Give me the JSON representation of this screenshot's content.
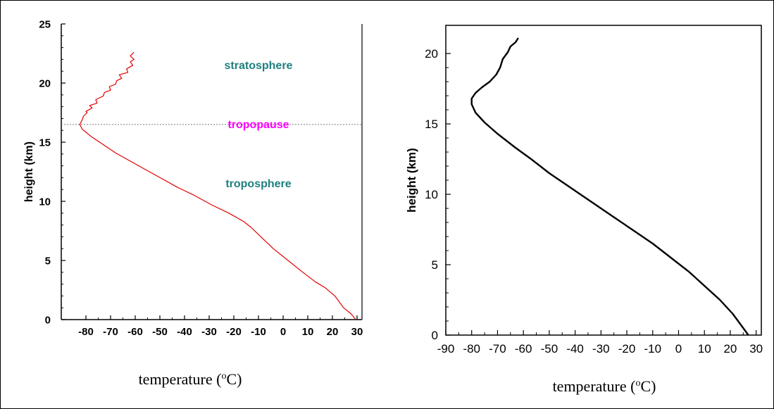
{
  "chart_data": [
    {
      "type": "line",
      "xlabel_prefix": "temperature (",
      "xlabel_sup": "o",
      "xlabel_suffix": "C)",
      "ylabel": "height (km)",
      "xlim": [
        -90,
        32
      ],
      "ylim": [
        0,
        25
      ],
      "xticks": [
        -80,
        -70,
        -60,
        -50,
        -40,
        -30,
        -20,
        -10,
        0,
        10,
        20,
        30
      ],
      "yticks": [
        0,
        5,
        10,
        15,
        20,
        25
      ],
      "tropopause_height": 16.5,
      "annotations": [
        {
          "text": "stratosphere",
          "x": -10,
          "y": 21.2,
          "color": "#1f7f7f"
        },
        {
          "text": "tropopause",
          "x": -10,
          "y": 16.2,
          "color": "#ff00ff"
        },
        {
          "text": "troposphere",
          "x": -10,
          "y": 11.2,
          "color": "#1f7f7f"
        }
      ],
      "series": [
        {
          "color": "#e00000",
          "points": [
            [
              29.5,
              0.0
            ],
            [
              27.5,
              0.5
            ],
            [
              24.5,
              1.0
            ],
            [
              21.0,
              2.0
            ],
            [
              17.0,
              2.7
            ],
            [
              13.0,
              3.2
            ],
            [
              8.0,
              4.0
            ],
            [
              2.0,
              5.0
            ],
            [
              -4.0,
              6.0
            ],
            [
              -9.0,
              7.0
            ],
            [
              -13.0,
              7.8
            ],
            [
              -16.0,
              8.3
            ],
            [
              -22.0,
              9.0
            ],
            [
              -29.0,
              9.7
            ],
            [
              -36.0,
              10.5
            ],
            [
              -43.0,
              11.2
            ],
            [
              -49.0,
              11.9
            ],
            [
              -56.0,
              12.7
            ],
            [
              -62.0,
              13.4
            ],
            [
              -68.0,
              14.1
            ],
            [
              -73.0,
              14.8
            ],
            [
              -78.0,
              15.5
            ],
            [
              -81.5,
              16.1
            ],
            [
              -82.5,
              16.5
            ],
            [
              -81.5,
              16.9
            ],
            [
              -81.0,
              17.2
            ],
            [
              -79.5,
              17.5
            ],
            [
              -80.0,
              17.6
            ],
            [
              -77.5,
              17.9
            ],
            [
              -78.5,
              18.1
            ],
            [
              -75.5,
              18.3
            ],
            [
              -76.0,
              18.6
            ],
            [
              -73.0,
              18.9
            ],
            [
              -72.5,
              19.2
            ],
            [
              -70.0,
              19.4
            ],
            [
              -70.5,
              19.7
            ],
            [
              -68.0,
              19.9
            ],
            [
              -67.5,
              20.2
            ],
            [
              -65.5,
              20.4
            ],
            [
              -66.5,
              20.7
            ],
            [
              -63.0,
              20.9
            ],
            [
              -63.5,
              21.2
            ],
            [
              -61.0,
              21.5
            ],
            [
              -62.0,
              21.8
            ],
            [
              -60.5,
              22.0
            ],
            [
              -62.0,
              22.3
            ],
            [
              -60.5,
              22.6
            ]
          ]
        }
      ]
    },
    {
      "type": "line",
      "xlabel_prefix": "temperature (",
      "xlabel_sup": "o",
      "xlabel_suffix": "C)",
      "ylabel": "height (km)",
      "xlim": [
        -90,
        32
      ],
      "ylim": [
        0,
        22
      ],
      "xticks": [
        -90,
        -80,
        -70,
        -60,
        -50,
        -40,
        -30,
        -20,
        -10,
        0,
        10,
        20,
        30
      ],
      "yticks": [
        0,
        5,
        10,
        15,
        20
      ],
      "series": [
        {
          "color": "#000000",
          "points": [
            [
              27.0,
              0.0
            ],
            [
              25.0,
              0.5
            ],
            [
              21.0,
              1.5
            ],
            [
              16.0,
              2.5
            ],
            [
              10.0,
              3.5
            ],
            [
              4.0,
              4.5
            ],
            [
              -3.0,
              5.5
            ],
            [
              -10.0,
              6.5
            ],
            [
              -18.0,
              7.5
            ],
            [
              -26.0,
              8.5
            ],
            [
              -34.0,
              9.5
            ],
            [
              -42.0,
              10.5
            ],
            [
              -50.0,
              11.5
            ],
            [
              -57.0,
              12.5
            ],
            [
              -63.0,
              13.3
            ],
            [
              -70.0,
              14.3
            ],
            [
              -75.0,
              15.1
            ],
            [
              -78.5,
              15.8
            ],
            [
              -80.0,
              16.4
            ],
            [
              -80.0,
              16.8
            ],
            [
              -78.5,
              17.2
            ],
            [
              -76.0,
              17.6
            ],
            [
              -73.0,
              18.0
            ],
            [
              -70.5,
              18.5
            ],
            [
              -69.0,
              19.0
            ],
            [
              -68.0,
              19.6
            ],
            [
              -66.0,
              20.1
            ],
            [
              -65.0,
              20.5
            ],
            [
              -63.0,
              20.8
            ],
            [
              -62.0,
              21.1
            ]
          ]
        }
      ]
    }
  ]
}
